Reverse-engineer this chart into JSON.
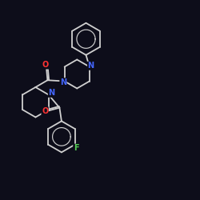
{
  "background_color": "#0d0d1a",
  "bond_color": "#d0d0d0",
  "nitrogen_color": "#4466ff",
  "oxygen_color": "#ff3333",
  "fluorine_color": "#55cc55",
  "figsize": [
    2.5,
    2.5
  ],
  "dpi": 100,
  "xlim": [
    0,
    10
  ],
  "ylim": [
    0,
    10
  ]
}
